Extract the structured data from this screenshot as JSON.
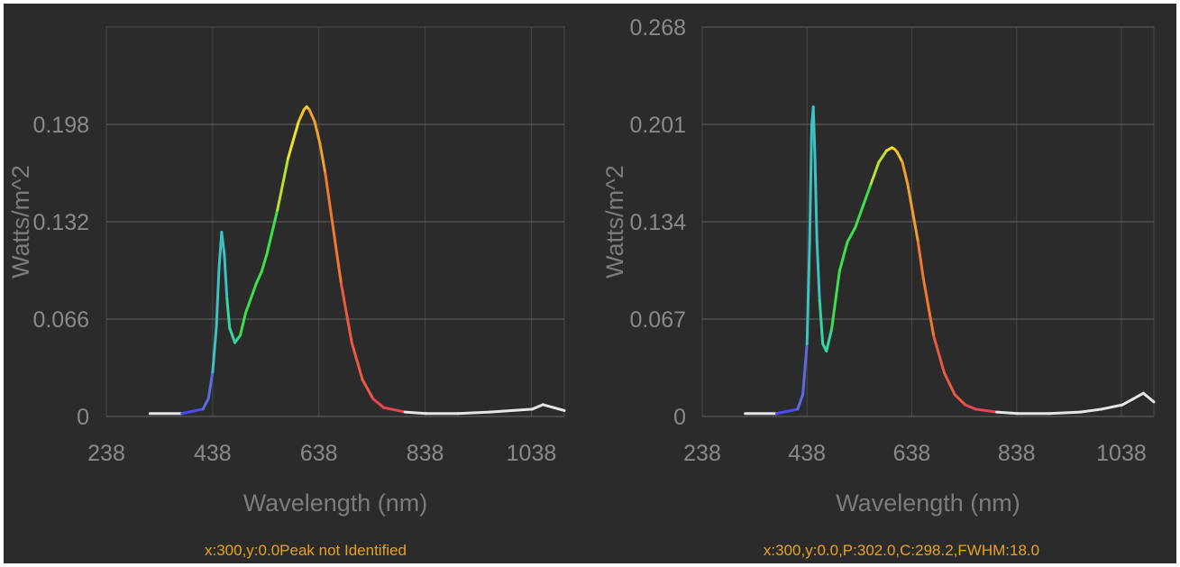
{
  "chart_data": [
    {
      "type": "line",
      "xlabel": "Wavelength (nm)",
      "ylabel": "Watts/m^2",
      "x_ticks": [
        "238",
        "438",
        "638",
        "838",
        "1038"
      ],
      "y_ticks": [
        "0",
        "0.066",
        "0.132",
        "0.198"
      ],
      "xlim": [
        238,
        1100
      ],
      "ylim": [
        0,
        0.264
      ],
      "grid": true,
      "status_text": "x:300,y:0.0Peak not Identified",
      "series": [
        {
          "x": [
            320,
            380,
            420,
            430,
            438,
            445,
            450,
            455,
            460,
            465,
            470,
            480,
            490,
            500,
            510,
            520,
            530,
            540,
            560,
            580,
            600,
            610,
            615,
            620,
            630,
            640,
            650,
            660,
            680,
            700,
            720,
            740,
            760,
            800,
            840,
            900,
            960,
            1000,
            1040,
            1060,
            1080,
            1100
          ],
          "y": [
            0.002,
            0.002,
            0.005,
            0.012,
            0.03,
            0.06,
            0.1,
            0.125,
            0.11,
            0.08,
            0.06,
            0.05,
            0.055,
            0.07,
            0.08,
            0.09,
            0.098,
            0.11,
            0.14,
            0.175,
            0.2,
            0.208,
            0.21,
            0.208,
            0.2,
            0.185,
            0.165,
            0.14,
            0.09,
            0.05,
            0.025,
            0.012,
            0.006,
            0.003,
            0.002,
            0.002,
            0.003,
            0.004,
            0.005,
            0.008,
            0.006,
            0.004
          ]
        }
      ]
    },
    {
      "type": "line",
      "xlabel": "Wavelength (nm)",
      "ylabel": "Watts/m^2",
      "x_ticks": [
        "238",
        "438",
        "638",
        "838",
        "1038"
      ],
      "y_ticks": [
        "0",
        "0.067",
        "0.134",
        "0.201",
        "0.268"
      ],
      "xlim": [
        238,
        1100
      ],
      "ylim": [
        0,
        0.268
      ],
      "grid": true,
      "status_text": "x:300,y:0.0,P:302.0,C:298.2,FWHM:18.0",
      "series": [
        {
          "x": [
            320,
            380,
            420,
            430,
            438,
            443,
            447,
            450,
            453,
            457,
            462,
            468,
            475,
            485,
            500,
            515,
            530,
            545,
            560,
            575,
            590,
            600,
            605,
            610,
            620,
            630,
            640,
            650,
            660,
            680,
            700,
            720,
            740,
            760,
            800,
            840,
            900,
            960,
            1000,
            1040,
            1060,
            1080,
            1100
          ],
          "y": [
            0.002,
            0.002,
            0.005,
            0.015,
            0.05,
            0.12,
            0.2,
            0.213,
            0.18,
            0.12,
            0.08,
            0.05,
            0.045,
            0.06,
            0.1,
            0.12,
            0.13,
            0.145,
            0.16,
            0.175,
            0.183,
            0.185,
            0.184,
            0.182,
            0.175,
            0.16,
            0.14,
            0.12,
            0.095,
            0.055,
            0.03,
            0.015,
            0.008,
            0.005,
            0.003,
            0.002,
            0.002,
            0.003,
            0.005,
            0.008,
            0.012,
            0.016,
            0.01
          ]
        }
      ]
    }
  ]
}
